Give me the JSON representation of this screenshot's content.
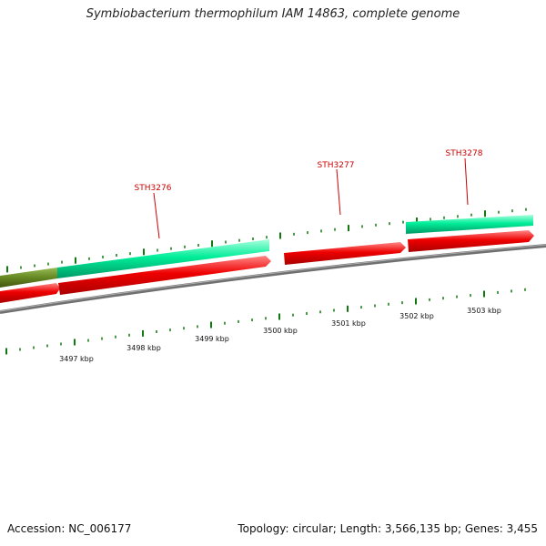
{
  "title": "Symbiobacterium thermophilum IAM 14863, complete genome",
  "footer": {
    "accession": "Accession: NC_006177",
    "topology": "Topology: circular; Length: 3,566,135 bp; Genes: 3,455"
  },
  "colors": {
    "forward_gene": "#00ee99",
    "reverse_gene": "#ee0000",
    "olive_gene": "#668822",
    "backbone": "#808080",
    "tick": "#117711",
    "label": "#cc0000"
  },
  "gene_labels": [
    {
      "id": "STH3276"
    },
    {
      "id": "STH3277"
    },
    {
      "id": "STH3278"
    }
  ],
  "scale_labels": [
    "3497 kbp",
    "3498 kbp",
    "3499 kbp",
    "3500 kbp",
    "3501 kbp",
    "3502 kbp",
    "3503 kbp"
  ]
}
